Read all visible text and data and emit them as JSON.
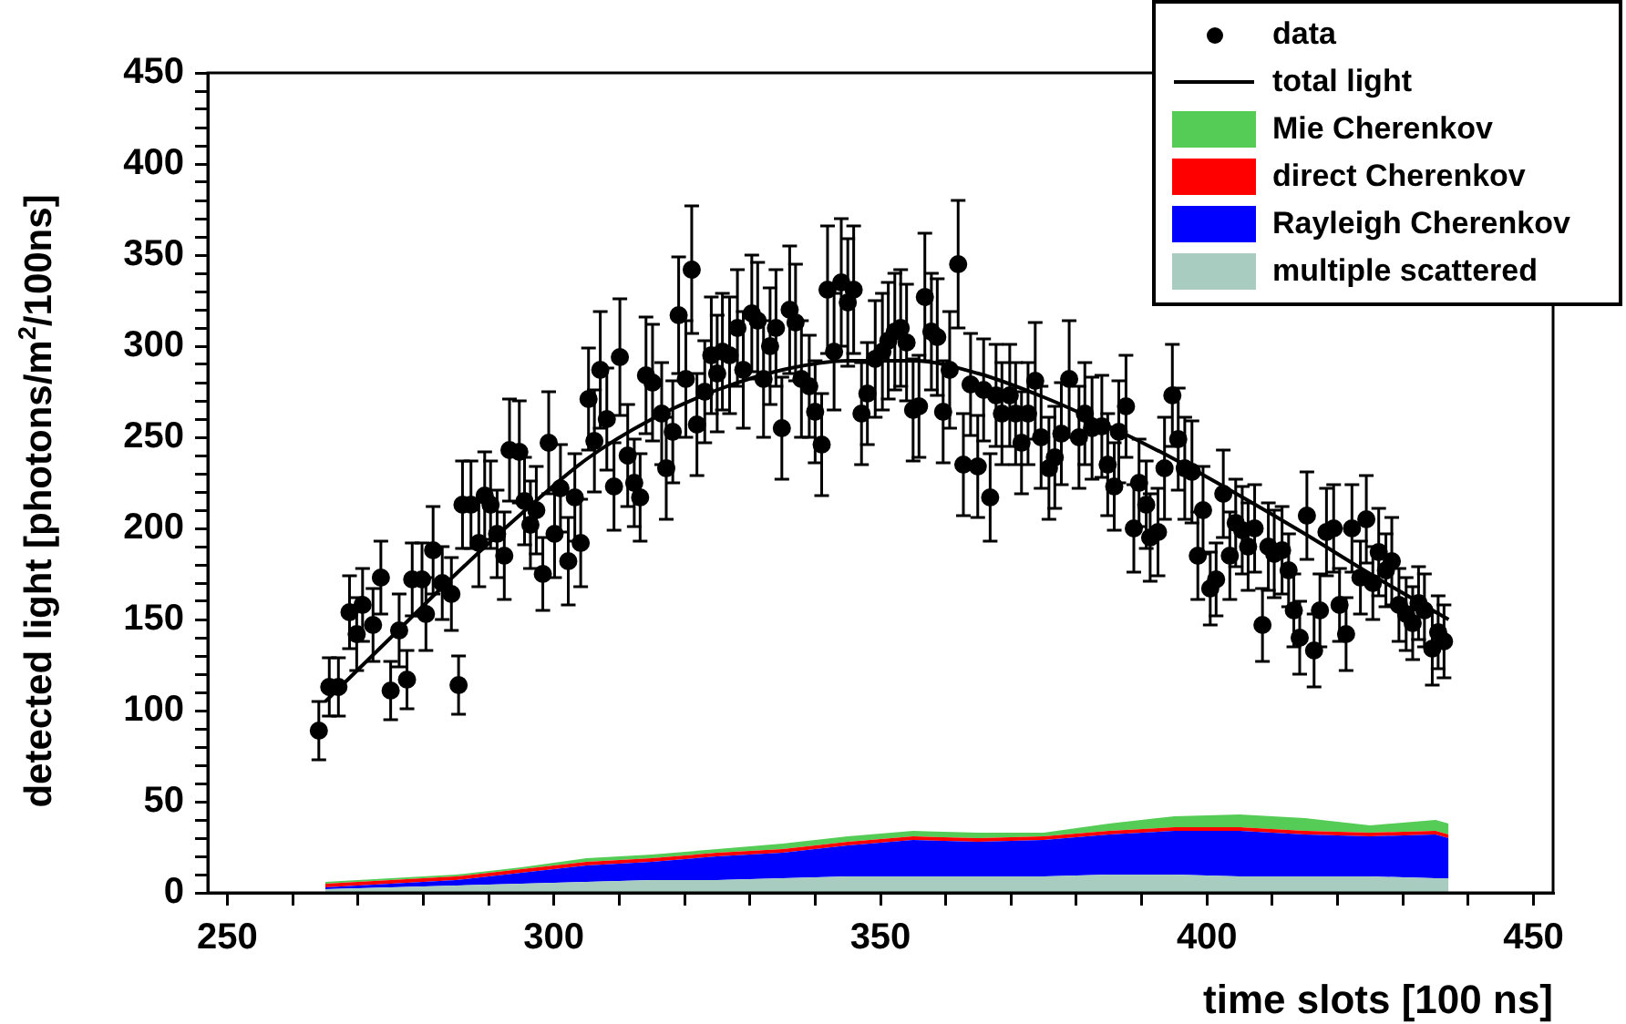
{
  "chart_data": {
    "type": "scatter",
    "xlabel": "time slots [100 ns]",
    "ylabel": "detected light [photons/m$^{2}$/100ns]",
    "xlim": [
      247,
      453
    ],
    "ylim": [
      0,
      450
    ],
    "xticks": [
      250,
      {
        "value": 260,
        "label": null
      },
      {
        "value": 270,
        "label": null
      },
      {
        "value": 280,
        "label": null
      },
      {
        "value": 290,
        "label": null
      },
      300,
      {
        "value": 310,
        "label": null
      },
      {
        "value": 320,
        "label": null
      },
      {
        "value": 330,
        "label": null
      },
      {
        "value": 340,
        "label": null
      },
      350,
      {
        "value": 360,
        "label": null
      },
      {
        "value": 370,
        "label": null
      },
      {
        "value": 380,
        "label": null
      },
      {
        "value": 390,
        "label": null
      },
      400,
      {
        "value": 410,
        "label": null
      },
      {
        "value": 420,
        "label": null
      },
      {
        "value": 430,
        "label": null
      },
      {
        "value": 440,
        "label": null
      },
      450
    ],
    "yticks": [
      0,
      {
        "value": 10,
        "label": null
      },
      {
        "value": 20,
        "label": null
      },
      {
        "value": 30,
        "label": null
      },
      {
        "value": 40,
        "label": null
      },
      50,
      {
        "value": 60,
        "label": null
      },
      {
        "value": 70,
        "label": null
      },
      {
        "value": 80,
        "label": null
      },
      {
        "value": 90,
        "label": null
      },
      100,
      {
        "value": 110,
        "label": null
      },
      {
        "value": 120,
        "label": null
      },
      {
        "value": 130,
        "label": null
      },
      {
        "value": 140,
        "label": null
      },
      150,
      {
        "value": 160,
        "label": null
      },
      {
        "value": 170,
        "label": null
      },
      {
        "value": 180,
        "label": null
      },
      {
        "value": 190,
        "label": null
      },
      200,
      {
        "value": 210,
        "label": null
      },
      {
        "value": 220,
        "label": null
      },
      {
        "value": 230,
        "label": null
      },
      {
        "value": 240,
        "label": null
      },
      250,
      {
        "value": 260,
        "label": null
      },
      {
        "value": 270,
        "label": null
      },
      {
        "value": 280,
        "label": null
      },
      {
        "value": 290,
        "label": null
      },
      300,
      {
        "value": 310,
        "label": null
      },
      {
        "value": 320,
        "label": null
      },
      {
        "value": 330,
        "label": null
      },
      {
        "value": 340,
        "label": null
      },
      350,
      {
        "value": 360,
        "label": null
      },
      {
        "value": 370,
        "label": null
      },
      {
        "value": 380,
        "label": null
      },
      {
        "value": 390,
        "label": null
      },
      400,
      {
        "value": 410,
        "label": null
      },
      {
        "value": 420,
        "label": null
      },
      {
        "value": 430,
        "label": null
      },
      {
        "value": 440,
        "label": null
      },
      450
    ],
    "legend": "top right",
    "stacked": true,
    "series": [
      {
        "name": "data",
        "color": "#000000",
        "marker": "circle",
        "x": [
          264,
          265.6,
          267,
          268.7,
          269.8,
          270.7,
          272.3,
          273.5,
          275,
          276.3,
          277.5,
          278.3,
          279.8,
          280.4,
          281.5,
          282.9,
          284.3,
          285.4,
          286,
          287.3,
          288.5,
          289.4,
          290.3,
          291.3,
          292.4,
          293.2,
          294.7,
          295.5,
          296.4,
          297.3,
          298.3,
          299.2,
          300.1,
          301,
          302.2,
          303.2,
          304.1,
          305.3,
          306.2,
          307.1,
          308.1,
          309.2,
          310.1,
          311.3,
          312.3,
          313.2,
          314.1,
          315.1,
          316.5,
          317.2,
          318.2,
          319.1,
          320.2,
          321.1,
          321.9,
          323.1,
          324.1,
          325,
          325.8,
          326.9,
          328.1,
          329,
          330.3,
          331.2,
          332.1,
          333.1,
          334,
          334.9,
          336.1,
          337,
          337.9,
          339.1,
          340,
          341,
          341.9,
          342.9,
          344,
          345,
          345.9,
          347.1,
          348,
          349.2,
          350.3,
          351.2,
          352.2,
          353.1,
          354,
          355,
          355.9,
          356.8,
          357.8,
          358.7,
          359.6,
          360.6,
          361.9,
          362.7,
          363.8,
          364.9,
          365.8,
          366.8,
          367.7,
          368.6,
          369.8,
          370.7,
          371.6,
          372.6,
          373.7,
          374.6,
          375.8,
          376.7,
          377.7,
          378.9,
          380.4,
          381.3,
          382.4,
          383.9,
          384.8,
          385.8,
          386.5,
          387.6,
          388.8,
          389.6,
          390.7,
          391.3,
          392.5,
          393.5,
          394.7,
          395.6,
          396.6,
          397.7,
          398.6,
          399.4,
          400.5,
          401.4,
          402.5,
          403.5,
          404.4,
          405.4,
          406.3,
          407.3,
          408.5,
          409.4,
          410.3,
          411.5,
          412.5,
          413.3,
          414.2,
          415.3,
          416.4,
          417.3,
          418.3,
          419.4,
          420.3,
          421.3,
          422.2,
          423.5,
          424.4,
          425.4,
          426.3,
          427.4,
          428.3,
          429.4,
          430.5,
          431.5,
          432.4,
          433.3,
          434.5,
          435.4,
          436.3
        ],
        "values": [
          89,
          113,
          113,
          154,
          142,
          158,
          147,
          173,
          111,
          144,
          117,
          172,
          172,
          153,
          188,
          170,
          164,
          114,
          213,
          213,
          192,
          218,
          213,
          197,
          185,
          243,
          242,
          215,
          202,
          210,
          175,
          247,
          197,
          222,
          182,
          217,
          192,
          271,
          248,
          287,
          260,
          223,
          294,
          240,
          225,
          217,
          284,
          280,
          263,
          233,
          253,
          317,
          282,
          342,
          257,
          275,
          295,
          285,
          297,
          295,
          310,
          287,
          318,
          314,
          282,
          300,
          310,
          255,
          320,
          313,
          282,
          278,
          264,
          246,
          331,
          297,
          335,
          324,
          331,
          263,
          274,
          293,
          297,
          303,
          308,
          310,
          302,
          265,
          267,
          327,
          308,
          305,
          264,
          287,
          345,
          235,
          279,
          234,
          276,
          217,
          273,
          263,
          273,
          263,
          247,
          263,
          281,
          250,
          233,
          239,
          252,
          282,
          250,
          263,
          255,
          256,
          235,
          223,
          253,
          267,
          200,
          225,
          213,
          195,
          198,
          233,
          273,
          249,
          233,
          231,
          185,
          210,
          167,
          172,
          219,
          185,
          203,
          199,
          190,
          200,
          147,
          190,
          186,
          188,
          177,
          155,
          140,
          207,
          133,
          155,
          198,
          200,
          158,
          142,
          200,
          173,
          205,
          170,
          187,
          177,
          182,
          158,
          153,
          148,
          159,
          155,
          134,
          143,
          138
        ],
        "errors": [
          16,
          16,
          16,
          20,
          20,
          20,
          20,
          20,
          16,
          20,
          16,
          20,
          20,
          20,
          24,
          20,
          20,
          16,
          24,
          24,
          24,
          24,
          24,
          24,
          24,
          28,
          28,
          24,
          24,
          24,
          20,
          28,
          24,
          24,
          24,
          24,
          24,
          28,
          28,
          32,
          28,
          24,
          32,
          28,
          24,
          24,
          32,
          32,
          28,
          28,
          28,
          32,
          32,
          35,
          28,
          28,
          32,
          32,
          32,
          32,
          32,
          32,
          32,
          32,
          32,
          32,
          32,
          28,
          35,
          32,
          32,
          28,
          28,
          28,
          35,
          32,
          35,
          35,
          35,
          28,
          28,
          32,
          32,
          32,
          32,
          32,
          32,
          28,
          28,
          35,
          32,
          32,
          28,
          32,
          35,
          28,
          28,
          28,
          28,
          24,
          28,
          28,
          28,
          28,
          28,
          28,
          32,
          28,
          28,
          28,
          28,
          32,
          28,
          28,
          28,
          28,
          28,
          24,
          28,
          28,
          24,
          24,
          24,
          24,
          24,
          28,
          28,
          28,
          28,
          28,
          24,
          24,
          20,
          20,
          24,
          24,
          24,
          24,
          24,
          24,
          20,
          24,
          24,
          24,
          20,
          20,
          20,
          24,
          20,
          20,
          24,
          24,
          20,
          20,
          24,
          20,
          24,
          20,
          24,
          20,
          24,
          20,
          20,
          20,
          20,
          20,
          20,
          20,
          20
        ]
      },
      {
        "name": "total light",
        "type": "line",
        "color": "#000000",
        "marker": "none",
        "x": [
          265,
          275,
          285,
          295,
          305,
          315,
          325,
          335,
          345,
          355,
          365,
          375,
          385,
          395,
          405,
          415,
          425,
          437
        ],
        "values": [
          105,
          140,
          175,
          208,
          238,
          260,
          276,
          287,
          292,
          292,
          285,
          272,
          256,
          238,
          218,
          197,
          175,
          150
        ]
      },
      {
        "name": "multiple scattered",
        "type": "area",
        "color": "#a8ccc0",
        "x": [
          265,
          275,
          285,
          295,
          305,
          315,
          325,
          335,
          345,
          355,
          365,
          375,
          385,
          395,
          405,
          415,
          425,
          435,
          437
        ],
        "values": [
          2,
          3,
          4,
          5,
          6,
          7,
          7,
          8,
          9,
          9,
          9,
          9,
          10,
          10,
          9,
          9,
          9,
          8,
          8
        ]
      },
      {
        "name": "Rayleigh Cherenkov",
        "type": "area",
        "color": "#0000ff",
        "x": [
          265,
          275,
          285,
          295,
          305,
          315,
          325,
          335,
          345,
          355,
          365,
          375,
          385,
          395,
          405,
          415,
          425,
          435,
          437
        ],
        "values": [
          1,
          2,
          3,
          6,
          9,
          10,
          13,
          14,
          17,
          20,
          19,
          20,
          22,
          24,
          25,
          23,
          22,
          24,
          22
        ]
      },
      {
        "name": "direct Cherenkov",
        "type": "area",
        "color": "#ff0000",
        "x": [
          265,
          275,
          285,
          295,
          305,
          315,
          325,
          335,
          345,
          355,
          365,
          375,
          385,
          395,
          405,
          415,
          425,
          435,
          437
        ],
        "values": [
          2,
          2,
          2,
          2,
          2,
          2,
          2,
          2,
          2,
          2,
          2,
          2,
          2,
          2,
          2,
          2,
          2,
          2,
          2
        ]
      },
      {
        "name": "Mie Cherenkov",
        "type": "area",
        "color": "#55cc55",
        "x": [
          265,
          275,
          285,
          295,
          305,
          315,
          325,
          335,
          345,
          355,
          365,
          375,
          385,
          395,
          405,
          415,
          425,
          435,
          437
        ],
        "values": [
          1,
          1,
          1,
          1,
          2,
          2,
          2,
          3,
          3,
          3,
          3,
          2,
          4,
          6,
          7,
          7,
          4,
          6,
          6
        ]
      }
    ]
  }
}
